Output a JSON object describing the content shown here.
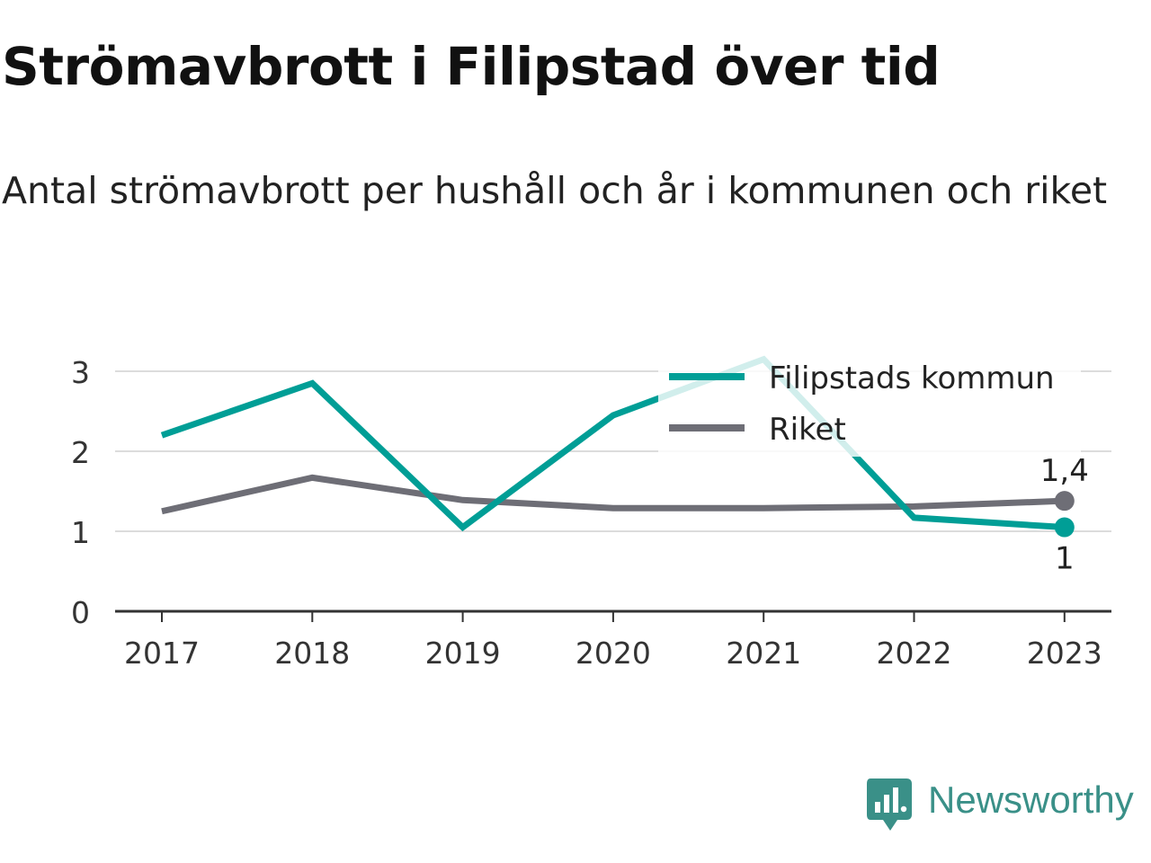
{
  "header": {
    "title": "Strömavbrott i Filipstad över tid",
    "subtitle": "Antal strömavbrott per hushåll och år i kommunen och riket"
  },
  "brand": {
    "name": "Newsworthy",
    "icon": "newsworthy-logo-icon",
    "color": "#3a9088"
  },
  "chart_data": {
    "type": "line",
    "x": [
      "2017",
      "2018",
      "2019",
      "2020",
      "2021",
      "2022",
      "2023"
    ],
    "ylim": [
      0,
      3.2
    ],
    "yticks": [
      0,
      1,
      2,
      3
    ],
    "grid": true,
    "legend_position": "top-right",
    "series": [
      {
        "name": "Filipstads kommun",
        "color": "#009e96",
        "values": [
          2.2,
          2.85,
          1.05,
          2.45,
          3.15,
          1.17,
          1.05
        ],
        "end_label": "1"
      },
      {
        "name": "Riket",
        "color": "#6e6e76",
        "values": [
          1.25,
          1.67,
          1.39,
          1.29,
          1.29,
          1.31,
          1.38
        ],
        "end_label": "1,4"
      }
    ]
  }
}
